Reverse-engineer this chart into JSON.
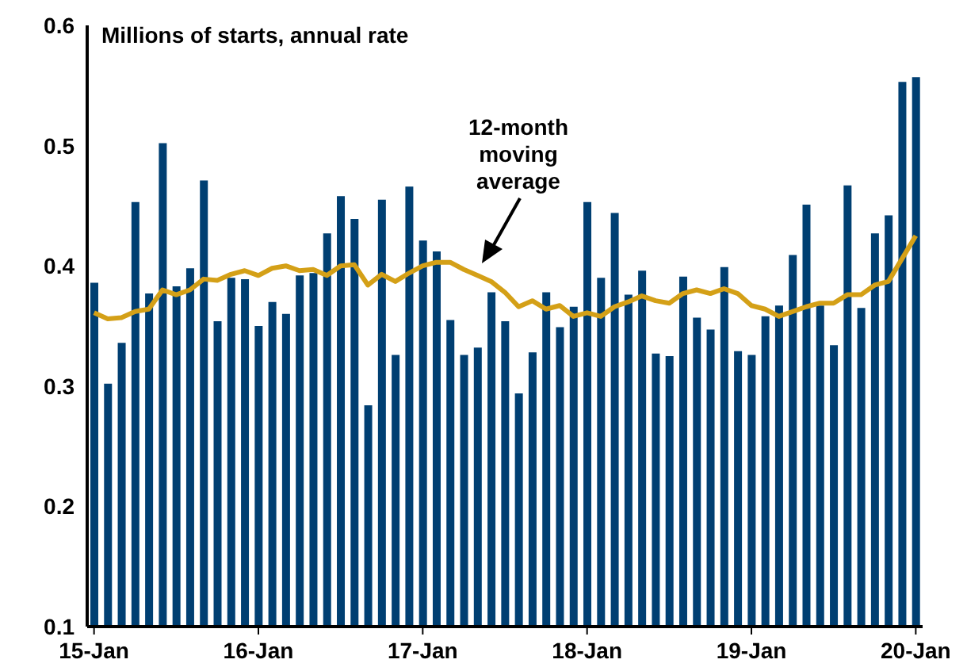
{
  "chart_data": {
    "type": "bar",
    "title": "Millions of starts, annual rate",
    "categories": [
      "15-Jan",
      null,
      null,
      null,
      null,
      null,
      null,
      null,
      null,
      null,
      null,
      null,
      "16-Jan",
      null,
      null,
      null,
      null,
      null,
      null,
      null,
      null,
      null,
      null,
      null,
      "17-Jan",
      null,
      null,
      null,
      null,
      null,
      null,
      null,
      null,
      null,
      null,
      null,
      "18-Jan",
      null,
      null,
      null,
      null,
      null,
      null,
      null,
      null,
      null,
      null,
      null,
      "19-Jan",
      null,
      null,
      null,
      null,
      null,
      null,
      null,
      null,
      null,
      null,
      null,
      "20-Jan"
    ],
    "series": [
      {
        "color": "#003f72",
        "values": [
          0.386,
          0.302,
          0.336,
          0.453,
          0.377,
          0.502,
          0.383,
          0.398,
          0.471,
          0.354,
          0.39,
          0.389,
          0.35,
          0.37,
          0.36,
          0.392,
          0.394,
          0.427,
          0.458,
          0.439,
          0.284,
          0.455,
          0.326,
          0.466,
          0.421,
          0.412,
          0.355,
          0.326,
          0.332,
          0.378,
          0.354,
          0.294,
          0.328,
          0.378,
          0.349,
          0.366,
          0.453,
          0.39,
          0.444,
          0.376,
          0.396,
          0.327,
          0.325,
          0.391,
          0.357,
          0.347,
          0.399,
          0.329,
          0.326,
          0.358,
          0.367,
          0.409,
          0.451,
          0.367,
          0.334,
          0.467,
          0.365,
          0.427,
          0.442,
          0.553,
          0.557
        ]
      },
      {
        "type": "line",
        "color": "#d4a017",
        "values": [
          0.361,
          0.356,
          0.357,
          0.362,
          0.364,
          0.38,
          0.376,
          0.38,
          0.389,
          0.388,
          0.393,
          0.396,
          0.392,
          0.398,
          0.4,
          0.396,
          0.397,
          0.392,
          0.4,
          0.401,
          0.384,
          0.393,
          0.387,
          0.394,
          0.4,
          0.403,
          0.403,
          0.397,
          0.392,
          0.387,
          0.378,
          0.366,
          0.371,
          0.364,
          0.367,
          0.358,
          0.361,
          0.358,
          0.366,
          0.37,
          0.375,
          0.371,
          0.369,
          0.377,
          0.38,
          0.377,
          0.381,
          0.377,
          0.367,
          0.364,
          0.358,
          0.362,
          0.366,
          0.369,
          0.369,
          0.376,
          0.376,
          0.384,
          0.387,
          0.406,
          0.425
        ]
      }
    ],
    "ylim": [
      0.1,
      0.6
    ],
    "yticks": [
      0.1,
      0.2,
      0.3,
      0.4,
      0.5,
      0.6
    ],
    "grid": false,
    "marker": "none",
    "line_style": "solid",
    "annotations": [
      "12-month moving average"
    ]
  }
}
